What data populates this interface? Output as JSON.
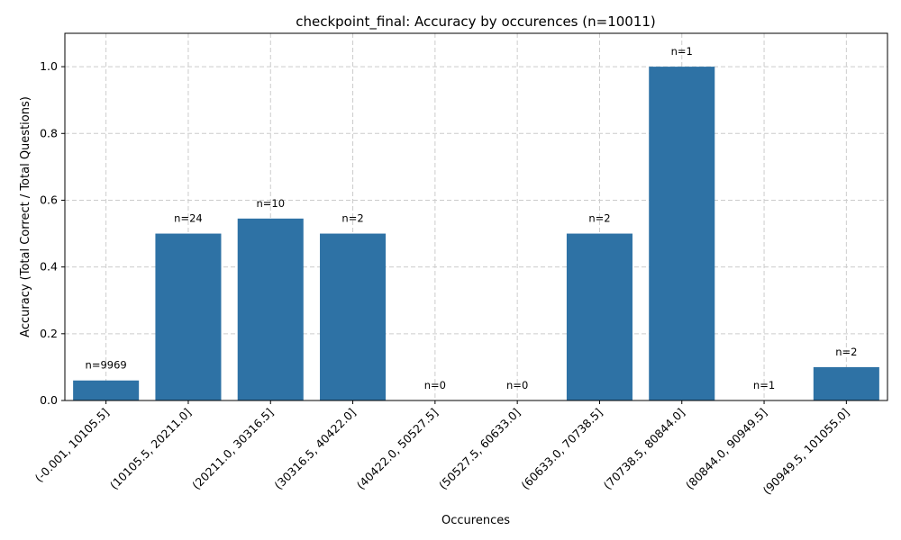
{
  "chart_data": {
    "type": "bar",
    "title": "checkpoint_final: Accuracy by occurences (n=10011)",
    "xlabel": "Occurences",
    "ylabel": "Accuracy (Total Correct / Total Questions)",
    "ylim": [
      0,
      1.1
    ],
    "yticks": [
      0.0,
      0.2,
      0.4,
      0.6,
      0.8,
      1.0
    ],
    "grid": true,
    "bar_color": "#2e72a5",
    "grid_color": "#cccccc",
    "categories": [
      "(-0.001, 10105.5]",
      "(10105.5, 20211.0]",
      "(20211.0, 30316.5]",
      "(30316.5, 40422.0]",
      "(40422.0, 50527.5]",
      "(50527.5, 60633.0]",
      "(60633.0, 70738.5]",
      "(70738.5, 80844.0]",
      "(80844.0, 90949.5]",
      "(90949.5, 101055.0]"
    ],
    "values": [
      0.06,
      0.5,
      0.545,
      0.5,
      0.0,
      0.0,
      0.5,
      1.0,
      0.0,
      0.1
    ],
    "bar_labels": [
      "n=9969",
      "n=24",
      "n=10",
      "n=2",
      "n=0",
      "n=0",
      "n=2",
      "n=1",
      "n=1",
      "n=2"
    ]
  }
}
